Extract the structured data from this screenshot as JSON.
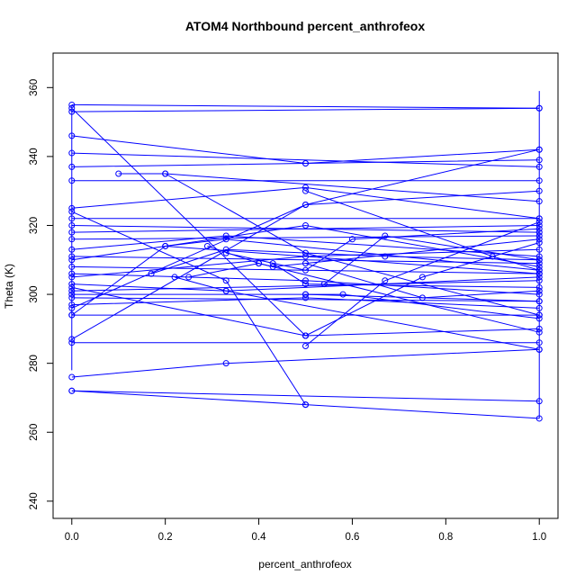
{
  "chart_data": {
    "type": "line",
    "title": "ATOM4 Northbound percent_anthrofeox",
    "xlabel": "percent_anthrofeox",
    "ylabel": "Theta (K)",
    "xlim": [
      -0.04,
      1.04
    ],
    "ylim": [
      235,
      370
    ],
    "xticks": [
      "0.0",
      "0.2",
      "0.4",
      "0.6",
      "0.8",
      "1.0"
    ],
    "yticks": [
      "240",
      "260",
      "280",
      "300",
      "320",
      "340",
      "360"
    ],
    "grid": false,
    "line_color": "#0000ff",
    "series": [
      {
        "x": [
          0,
          1
        ],
        "y": [
          355,
          354
        ]
      },
      {
        "x": [
          0,
          1
        ],
        "y": [
          353,
          354
        ]
      },
      {
        "x": [
          0,
          0.5,
          1
        ],
        "y": [
          346,
          338,
          342
        ]
      },
      {
        "x": [
          0,
          1
        ],
        "y": [
          341,
          337
        ]
      },
      {
        "x": [
          0,
          0.5,
          1
        ],
        "y": [
          337,
          338,
          339
        ]
      },
      {
        "x": [
          0,
          1
        ],
        "y": [
          333,
          333
        ]
      },
      {
        "x": [
          0.1,
          0.2,
          1
        ],
        "y": [
          335,
          335,
          327
        ]
      },
      {
        "x": [
          0,
          0.5,
          1
        ],
        "y": [
          325,
          331,
          322
        ]
      },
      {
        "x": [
          0,
          1
        ],
        "y": [
          322,
          322
        ]
      },
      {
        "x": [
          0,
          1
        ],
        "y": [
          318,
          320
        ]
      },
      {
        "x": [
          0,
          1
        ],
        "y": [
          316,
          317
        ]
      },
      {
        "x": [
          0,
          0.33,
          1
        ],
        "y": [
          313,
          317,
          311
        ]
      },
      {
        "x": [
          0,
          0.5,
          1
        ],
        "y": [
          310,
          320,
          308
        ]
      },
      {
        "x": [
          0,
          1
        ],
        "y": [
          308,
          306
        ]
      },
      {
        "x": [
          0,
          0.5,
          1
        ],
        "y": [
          306,
          304,
          300
        ]
      },
      {
        "x": [
          0,
          0.33,
          1
        ],
        "y": [
          303,
          301,
          305
        ]
      },
      {
        "x": [
          0,
          1
        ],
        "y": [
          301,
          304
        ]
      },
      {
        "x": [
          0,
          0.5,
          1
        ],
        "y": [
          300,
          300,
          298
        ]
      },
      {
        "x": [
          0,
          0.5,
          1
        ],
        "y": [
          297,
          299,
          296
        ]
      },
      {
        "x": [
          0,
          1
        ],
        "y": [
          294,
          294
        ]
      },
      {
        "x": [
          0,
          0.5,
          1
        ],
        "y": [
          287,
          326,
          330
        ]
      },
      {
        "x": [
          0,
          1
        ],
        "y": [
          286,
          286
        ]
      },
      {
        "x": [
          0,
          0.33,
          1
        ],
        "y": [
          276,
          280,
          284
        ]
      },
      {
        "x": [
          0,
          0.5,
          1
        ],
        "y": [
          272,
          268,
          264
        ]
      },
      {
        "x": [
          0,
          1
        ],
        "y": [
          272,
          269
        ]
      },
      {
        "x": [
          0,
          0.5
        ],
        "y": [
          354,
          288
        ]
      },
      {
        "x": [
          0,
          0.5,
          1
        ],
        "y": [
          296,
          326,
          342
        ]
      },
      {
        "x": [
          0,
          0.33,
          0.5
        ],
        "y": [
          324,
          304,
          268
        ]
      },
      {
        "x": [
          0.2,
          0.5,
          1
        ],
        "y": [
          335,
          312,
          294
        ]
      },
      {
        "x": [
          0.2,
          0.33,
          1
        ],
        "y": [
          314,
          316,
          307
        ]
      },
      {
        "x": [
          0.17,
          0.33,
          0.67,
          1
        ],
        "y": [
          306,
          313,
          311,
          310
        ]
      },
      {
        "x": [
          0.22,
          0.33,
          1
        ],
        "y": [
          305,
          301,
          284
        ]
      },
      {
        "x": [
          0.25,
          0.4,
          1
        ],
        "y": [
          305,
          309,
          289
        ]
      },
      {
        "x": [
          0.29,
          0.4,
          0.43,
          1
        ],
        "y": [
          314,
          309,
          308,
          316
        ]
      },
      {
        "x": [
          0.33,
          0.5,
          0.6,
          1
        ],
        "y": [
          312,
          307,
          316,
          319
        ]
      },
      {
        "x": [
          0.43,
          0.5,
          1
        ],
        "y": [
          309,
          303,
          302
        ]
      },
      {
        "x": [
          0.5,
          0.67,
          1
        ],
        "y": [
          285,
          304,
          321
        ]
      },
      {
        "x": [
          0.5,
          0.75,
          1
        ],
        "y": [
          288,
          305,
          315
        ]
      },
      {
        "x": [
          0.5,
          0.58,
          1
        ],
        "y": [
          300,
          300,
          293
        ]
      },
      {
        "x": [
          0.54,
          0.67,
          1
        ],
        "y": [
          303,
          317,
          310
        ]
      },
      {
        "x": [
          0.5,
          0.75,
          1
        ],
        "y": [
          309,
          299,
          301
        ]
      },
      {
        "x": [
          0.5,
          0.9,
          1
        ],
        "y": [
          330,
          311,
          307
        ]
      },
      {
        "x": [
          0,
          0.2,
          1
        ],
        "y": [
          294,
          314,
          306
        ]
      },
      {
        "x": [
          0,
          0.5,
          1
        ],
        "y": [
          305,
          311,
          313
        ]
      },
      {
        "x": [
          0,
          1
        ],
        "y": [
          320,
          318
        ]
      },
      {
        "x": [
          0,
          1
        ],
        "y": [
          311,
          309
        ]
      },
      {
        "x": [
          0,
          1
        ],
        "y": [
          299,
          298
        ]
      },
      {
        "x": [
          0,
          0.5,
          1
        ],
        "y": [
          302,
          288,
          290
        ]
      }
    ],
    "vertical_segments": [
      {
        "x": 0,
        "y": [
          278,
          355
        ]
      },
      {
        "x": 1,
        "y": [
          264,
          359
        ]
      }
    ]
  }
}
